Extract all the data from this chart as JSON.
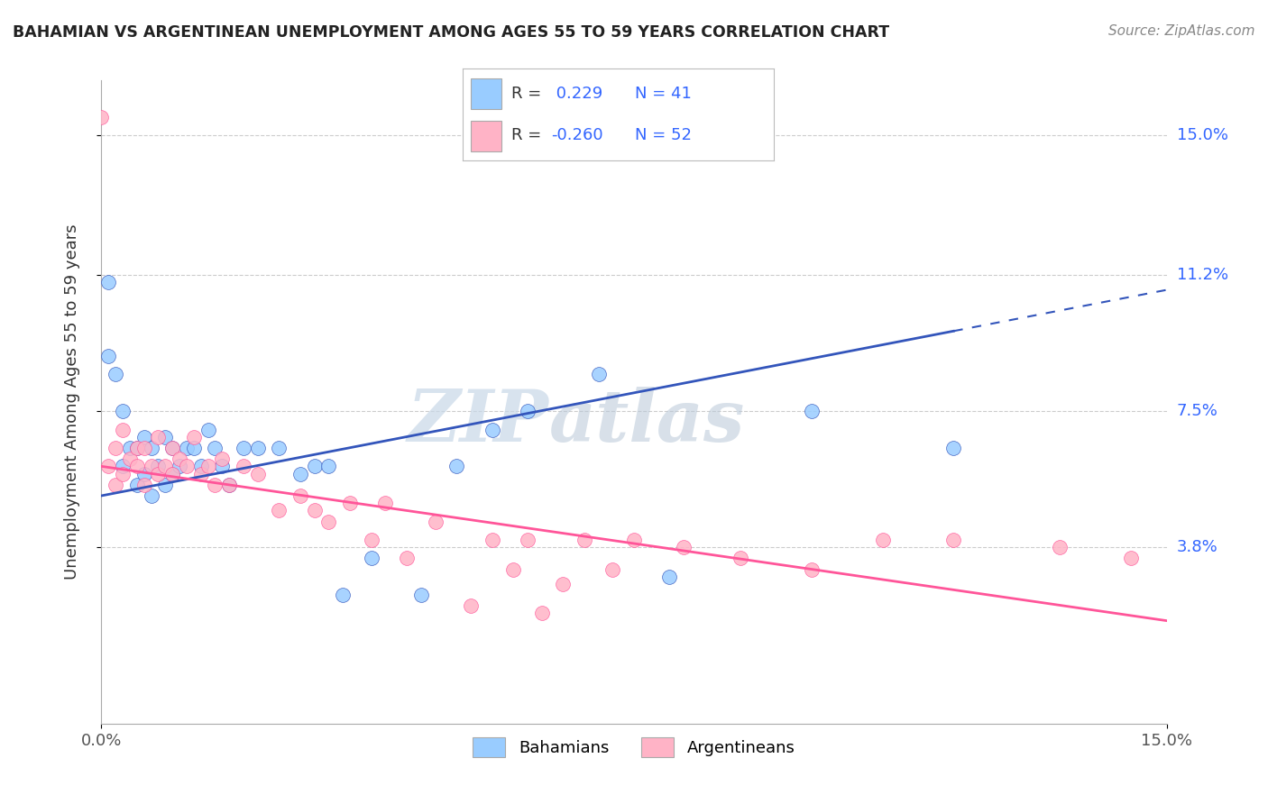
{
  "title": "BAHAMIAN VS ARGENTINEAN UNEMPLOYMENT AMONG AGES 55 TO 59 YEARS CORRELATION CHART",
  "source": "Source: ZipAtlas.com",
  "ylabel": "Unemployment Among Ages 55 to 59 years",
  "xlim": [
    0.0,
    0.15
  ],
  "ylim": [
    -0.01,
    0.165
  ],
  "xtick_labels": [
    "0.0%",
    "15.0%"
  ],
  "xtick_vals": [
    0.0,
    0.15
  ],
  "ytick_labels": [
    "3.8%",
    "7.5%",
    "11.2%",
    "15.0%"
  ],
  "ytick_vals": [
    0.038,
    0.075,
    0.112,
    0.15
  ],
  "r_bahamian": 0.229,
  "n_bahamian": 41,
  "r_argentinean": -0.26,
  "n_argentinean": 52,
  "color_bahamian": "#99CCFF",
  "color_argentinean": "#FFB3C6",
  "color_trendline_bahamian": "#3355BB",
  "color_trendline_argentinean": "#FF5599",
  "color_r_value": "#3366FF",
  "watermark_zip": "ZIP",
  "watermark_atlas": "atlas",
  "trendline_b_x0": 0.0,
  "trendline_b_y0": 0.052,
  "trendline_b_x1": 0.15,
  "trendline_b_y1": 0.108,
  "trendline_a_x0": 0.0,
  "trendline_a_y0": 0.06,
  "trendline_a_x1": 0.15,
  "trendline_a_y1": 0.018,
  "bahamian_x": [
    0.001,
    0.001,
    0.002,
    0.003,
    0.003,
    0.004,
    0.005,
    0.005,
    0.006,
    0.006,
    0.007,
    0.007,
    0.008,
    0.009,
    0.009,
    0.01,
    0.01,
    0.011,
    0.012,
    0.013,
    0.014,
    0.015,
    0.016,
    0.017,
    0.018,
    0.02,
    0.022,
    0.025,
    0.028,
    0.03,
    0.032,
    0.034,
    0.038,
    0.045,
    0.05,
    0.055,
    0.06,
    0.07,
    0.08,
    0.1,
    0.12
  ],
  "bahamian_y": [
    0.09,
    0.11,
    0.085,
    0.06,
    0.075,
    0.065,
    0.055,
    0.065,
    0.058,
    0.068,
    0.052,
    0.065,
    0.06,
    0.055,
    0.068,
    0.058,
    0.065,
    0.06,
    0.065,
    0.065,
    0.06,
    0.07,
    0.065,
    0.06,
    0.055,
    0.065,
    0.065,
    0.065,
    0.058,
    0.06,
    0.06,
    0.025,
    0.035,
    0.025,
    0.06,
    0.07,
    0.075,
    0.085,
    0.03,
    0.075,
    0.065
  ],
  "argentinean_x": [
    0.0,
    0.001,
    0.002,
    0.002,
    0.003,
    0.003,
    0.004,
    0.005,
    0.005,
    0.006,
    0.006,
    0.007,
    0.008,
    0.008,
    0.009,
    0.01,
    0.01,
    0.011,
    0.012,
    0.013,
    0.014,
    0.015,
    0.016,
    0.017,
    0.018,
    0.02,
    0.022,
    0.025,
    0.028,
    0.03,
    0.032,
    0.035,
    0.038,
    0.04,
    0.043,
    0.047,
    0.052,
    0.055,
    0.058,
    0.06,
    0.062,
    0.065,
    0.068,
    0.072,
    0.075,
    0.082,
    0.09,
    0.1,
    0.11,
    0.12,
    0.135,
    0.145
  ],
  "argentinean_y": [
    0.155,
    0.06,
    0.055,
    0.065,
    0.058,
    0.07,
    0.062,
    0.06,
    0.065,
    0.055,
    0.065,
    0.06,
    0.058,
    0.068,
    0.06,
    0.065,
    0.058,
    0.062,
    0.06,
    0.068,
    0.058,
    0.06,
    0.055,
    0.062,
    0.055,
    0.06,
    0.058,
    0.048,
    0.052,
    0.048,
    0.045,
    0.05,
    0.04,
    0.05,
    0.035,
    0.045,
    0.022,
    0.04,
    0.032,
    0.04,
    0.02,
    0.028,
    0.04,
    0.032,
    0.04,
    0.038,
    0.035,
    0.032,
    0.04,
    0.04,
    0.038,
    0.035
  ]
}
